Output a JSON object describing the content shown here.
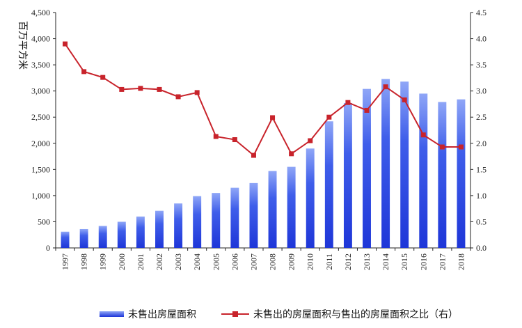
{
  "chart_data": {
    "type": "bar",
    "categories": [
      "1997",
      "1998",
      "1999",
      "2000",
      "2001",
      "2002",
      "2003",
      "2004",
      "2005",
      "2006",
      "2007",
      "2008",
      "2009",
      "2010",
      "2011",
      "2012",
      "2013",
      "2014",
      "2015",
      "2016",
      "2017",
      "2018"
    ],
    "series": [
      {
        "name": "未售出房屋面积",
        "type": "bar",
        "axis": "left",
        "color": "#2b45e0",
        "values": [
          310,
          360,
          420,
          500,
          600,
          710,
          850,
          990,
          1050,
          1150,
          1240,
          1470,
          1550,
          1900,
          2420,
          2770,
          3040,
          3230,
          3180,
          2950,
          2790,
          2840
        ]
      },
      {
        "name": "未售出的房屋面积与售出的房屋面积之比（右）",
        "type": "line",
        "axis": "right",
        "color": "#c8232b",
        "values": [
          3.9,
          3.37,
          3.26,
          3.03,
          3.05,
          3.03,
          2.89,
          2.97,
          2.13,
          2.07,
          1.77,
          2.49,
          1.8,
          2.05,
          2.5,
          2.78,
          2.63,
          3.08,
          2.83,
          2.16,
          1.93,
          1.93
        ]
      }
    ],
    "ylabel": "百万平方米",
    "ylim": [
      0,
      4500
    ],
    "yticks": [
      "0",
      "500",
      "1,000",
      "1,500",
      "2,000",
      "2,500",
      "3,000",
      "3,500",
      "4,000",
      "4,500"
    ],
    "y2lim": [
      0,
      4.5
    ],
    "y2ticks": [
      "0.0",
      "0.5",
      "1.0",
      "1.5",
      "2.0",
      "2.5",
      "3.0",
      "3.5",
      "4.0",
      "4.5"
    ],
    "grid": false,
    "legend_position": "bottom"
  }
}
